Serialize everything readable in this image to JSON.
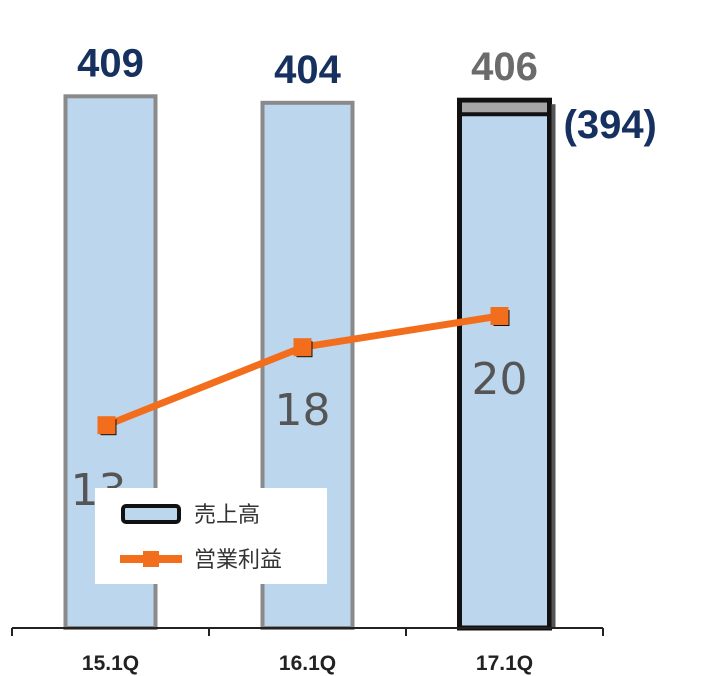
{
  "chart_data": {
    "type": "bar",
    "categories": [
      "15.1Q",
      "16.1Q",
      "17.1Q"
    ],
    "series": [
      {
        "name": "売上高",
        "kind": "bar",
        "values": [
          409,
          404,
          406
        ],
        "labels": [
          "409",
          "404",
          "406"
        ],
        "label_colors": [
          "#16305f",
          "#16305f",
          "#6b6b6b"
        ],
        "color": "#bcd6ee"
      },
      {
        "name": "営業利益",
        "kind": "line",
        "values": [
          13,
          18,
          20
        ],
        "labels": [
          "13",
          "18",
          "20"
        ],
        "color": "#f36e1c"
      }
    ],
    "annotations": [
      {
        "category": "17.1Q",
        "text": "(394)",
        "value": 394,
        "color": "#16305f"
      }
    ],
    "legend": {
      "placement": "bottom-left",
      "items": [
        {
          "label": "売上高",
          "marker": "bar"
        },
        {
          "label": "営業利益",
          "marker": "line-square"
        }
      ]
    },
    "ylim": [
      0,
      420
    ],
    "line_ylim": [
      0,
      35
    ],
    "xlabel": "",
    "ylabel": "",
    "grid": false
  }
}
